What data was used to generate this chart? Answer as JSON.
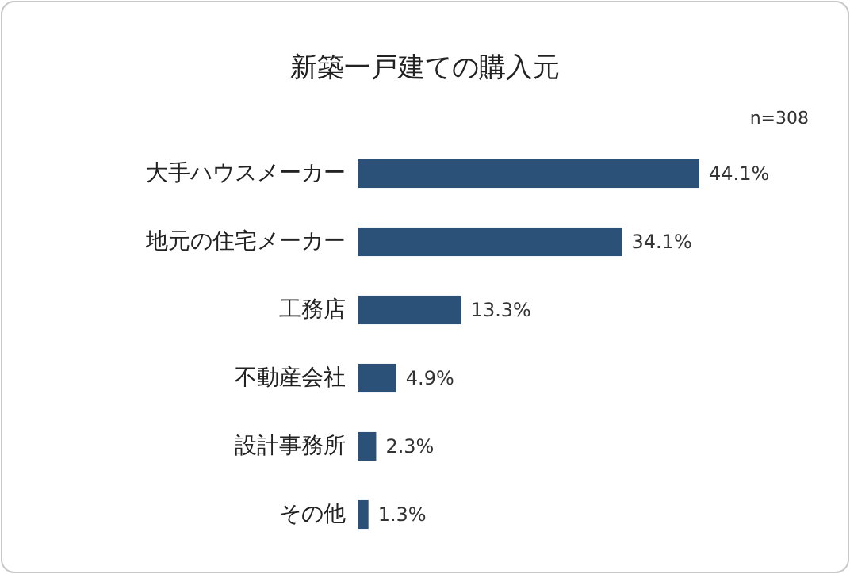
{
  "chart_data": {
    "type": "bar",
    "orientation": "horizontal",
    "title": "新築一戸建ての購入元",
    "annotations": [
      "n=308"
    ],
    "categories": [
      "大手ハウスメーカー",
      "地元の住宅メーカー",
      "工務店",
      "不動産会社",
      "設計事務所",
      "その他"
    ],
    "values": [
      44.1,
      34.1,
      13.3,
      4.9,
      2.3,
      1.3
    ],
    "value_labels": [
      "44.1%",
      "34.1%",
      "13.3%",
      "4.9%",
      "2.3%",
      "1.3%"
    ],
    "color": "#2b5179"
  }
}
